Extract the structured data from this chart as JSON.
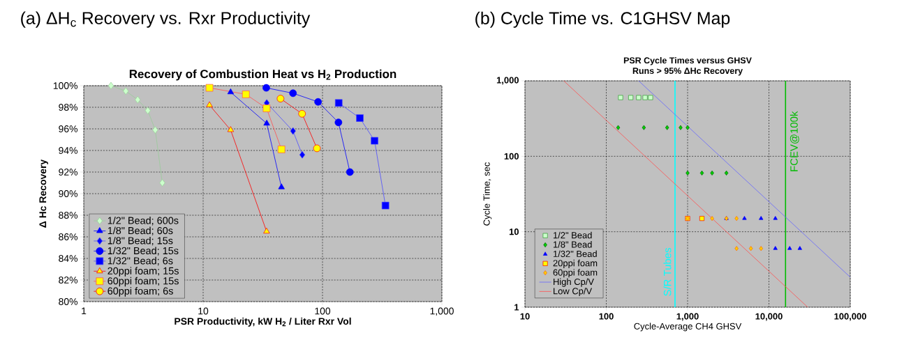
{
  "chart_data": [
    {
      "type": "line",
      "title": "(a) ΔH$_{c}$ Recovery vs. Rxr Productivity",
      "subtitle": "Recovery of Combustion Heat vs H$_{2}$ Production",
      "xlabel": "PSR Productivity, kW H$_{2}$ / Liter Rxr Vol",
      "ylabel": "Δ Hc Recovery",
      "log": "x",
      "xlim": [
        1,
        1000
      ],
      "ylim": [
        80,
        100
      ],
      "xticks": [
        1,
        10,
        100,
        {
          "value": 1000,
          "label": "1,000"
        }
      ],
      "yticks": [
        {
          "value": 80,
          "label": "80%"
        },
        {
          "value": 82,
          "label": "82%"
        },
        {
          "value": 84,
          "label": "84%"
        },
        {
          "value": 86,
          "label": "86%"
        },
        {
          "value": 88,
          "label": "88%"
        },
        {
          "value": 90,
          "label": "90%"
        },
        {
          "value": 92,
          "label": "92%"
        },
        {
          "value": 94,
          "label": "94%"
        },
        {
          "value": 96,
          "label": "96%"
        },
        {
          "value": 98,
          "label": "98%"
        },
        {
          "value": 100,
          "label": "100%"
        }
      ],
      "grid": true,
      "legend": "bottom left",
      "series": [
        {
          "name": "1/2\" Bead; 600s",
          "color": "#99cc99",
          "colors": [
            "#ccffcc",
            "#ccffcc",
            "#ccffcc",
            "#ccffcc",
            "#ccffcc",
            "#ccffcc"
          ],
          "marker": "diamond",
          "x": [
            1.69,
            2.25,
            2.83,
            3.44,
            3.97,
            4.55
          ],
          "values": [
            100,
            99.5,
            98.7,
            97.7,
            95.9,
            91.0
          ]
        },
        {
          "name": "1/8\" Bead; 60s",
          "color": "#0000ff",
          "colors": [
            "#0000ff",
            "#0000ff",
            "#0000ff"
          ],
          "marker": "triangle",
          "x": [
            17,
            34.1,
            45.3
          ],
          "values": [
            99.4,
            96.5,
            90.6
          ]
        },
        {
          "name": "1/8\" Bead; 15s",
          "color": "#4d4dff",
          "colors": [
            "#0000ff",
            "#0000ff",
            "#0000ff"
          ],
          "marker": "diamond",
          "x": [
            34.1,
            56.6,
            67.7
          ],
          "values": [
            98.4,
            95.8,
            93.6
          ]
        },
        {
          "name": "1/32\" Bead; 15s",
          "color": "#0000ff",
          "colors": [
            "#0000ff",
            "#0000ff",
            "#0000ff",
            "#0000ff",
            "#0000ff"
          ],
          "marker": "circle",
          "x": [
            33.8,
            56.6,
            91.8,
            136,
            169.7
          ],
          "values": [
            99.8,
            99.3,
            98.5,
            96.6,
            92.0
          ]
        },
        {
          "name": "1/32\" Bead; 6s",
          "color": "#4d4dff",
          "colors": [
            "#0000ff",
            "#0000ff",
            "#0000ff",
            "#0000ff"
          ],
          "marker": "square",
          "x": [
            136.7,
            205.6,
            272.9,
            336.8
          ],
          "values": [
            98.4,
            97.0,
            94.9,
            88.9
          ]
        },
        {
          "name": "20ppi foam; 15s",
          "color": "#ff0000",
          "colors": [
            "#ffff00",
            "#ffff00",
            "#ffff00"
          ],
          "marker": "triangle",
          "x": [
            11.3,
            17.0,
            34.0
          ],
          "values": [
            98.2,
            95.9,
            86.5
          ]
        },
        {
          "name": "60ppi foam; 15s",
          "color": "#ff5050",
          "colors": [
            "#ffff00",
            "#ffff00",
            "#ffff00",
            "#ffff00"
          ],
          "marker": "square",
          "x": [
            11.3,
            22.8,
            34.0,
            45.3
          ],
          "values": [
            99.8,
            99.2,
            97.9,
            94.1
          ]
        },
        {
          "name": "60ppi foam; 6s",
          "color": "#ff0000",
          "colors": [
            "#ffff00",
            "#ffff00",
            "#ffff00"
          ],
          "marker": "circle",
          "x": [
            44.5,
            67.4,
            89.8
          ],
          "values": [
            98.8,
            97.4,
            94.2
          ]
        }
      ]
    },
    {
      "type": "scatter",
      "title": "(b) Cycle Time vs. C1GHSV Map",
      "subtitle": "PSR Cycle Times versus GHSV",
      "annotations": [
        "Runs > 95% ΔHc Recovery"
      ],
      "xlabel": "Cycle-Average CH4 GHSV",
      "ylabel": "Cycle Time, sec",
      "log": "xy",
      "xlim": [
        10,
        100000
      ],
      "ylim": [
        1,
        1000
      ],
      "xticks": [
        10,
        100,
        {
          "value": 1000,
          "label": "1,000"
        },
        {
          "value": 10000,
          "label": "10,000"
        },
        {
          "value": 100000,
          "label": "100,000"
        }
      ],
      "yticks": [
        1,
        10,
        100,
        {
          "value": 1000,
          "label": "1,000"
        }
      ],
      "grid": true,
      "legend": "bottom left",
      "ref_lines": [
        {
          "axis": "x",
          "value": 700,
          "label": "S/R Tubes",
          "color": "#00ffff"
        },
        {
          "axis": "x",
          "value": 16000,
          "label": "FCEV@100k",
          "color": "#00bb00"
        }
      ],
      "series": [
        {
          "name": "1/2\" Bead",
          "type": "scatter",
          "color": "#339933",
          "colors": [
            "#ccffcc",
            "#ccffcc",
            "#ccffcc",
            "#ccffcc",
            "#ccffcc"
          ],
          "marker": "square",
          "x": [
            150,
            200,
            250,
            300,
            350
          ],
          "values": [
            600,
            600,
            600,
            600,
            600
          ]
        },
        {
          "name": "1/8\" Bead",
          "type": "scatter",
          "color": "#006600",
          "colors": [
            "#00cc00",
            "#00cc00",
            "#00cc00",
            "#00cc00",
            "#00cc00",
            "#00cc00",
            "#00cc00",
            "#00cc00",
            "#00cc00"
          ],
          "marker": "diamond",
          "x": [
            140,
            290,
            560,
            820,
            1000,
            1000,
            1500,
            2000,
            3000
          ],
          "values": [
            240,
            240,
            240,
            240,
            240,
            60,
            60,
            60,
            60
          ]
        },
        {
          "name": "1/32\" Bead",
          "type": "scatter",
          "color": "#0000ff",
          "colors": [
            "#0000ff",
            "#0000ff",
            "#0000ff",
            "#0000ff",
            "#0000ff",
            "#0000ff",
            "#0000ff"
          ],
          "marker": "triangle",
          "x": [
            3000,
            5000,
            8000,
            12000,
            12000,
            18000,
            24000
          ],
          "values": [
            15,
            15,
            15,
            15,
            6,
            6,
            6
          ]
        },
        {
          "name": "20ppi foam",
          "type": "scatter",
          "color": "#ff0000",
          "colors": [
            "#ffff00",
            "#ffff00"
          ],
          "marker": "square",
          "x": [
            1000,
            1500
          ],
          "values": [
            15,
            15
          ]
        },
        {
          "name": "60ppi foam",
          "type": "scatter",
          "color": "#ff6600",
          "colors": [
            "#ffcc00",
            "#ffcc00",
            "#ffcc00",
            "#ffcc00",
            "#ffcc00",
            "#ffcc00",
            "#ffcc00"
          ],
          "marker": "diamond",
          "x": [
            1000,
            2000,
            3000,
            4000,
            4000,
            6000,
            8000
          ],
          "values": [
            15,
            15,
            15,
            15,
            6,
            6,
            6
          ]
        },
        {
          "name": "High Cp/V",
          "type": "line",
          "color": "#6666ff",
          "marker": "none",
          "x": [
            250,
            100000
          ],
          "values": [
            1000,
            2.5
          ]
        },
        {
          "name": "Low Cp/V",
          "type": "line",
          "color": "#ff5050",
          "marker": "none",
          "x": [
            30,
            30000
          ],
          "values": [
            1000,
            1
          ]
        }
      ]
    }
  ]
}
